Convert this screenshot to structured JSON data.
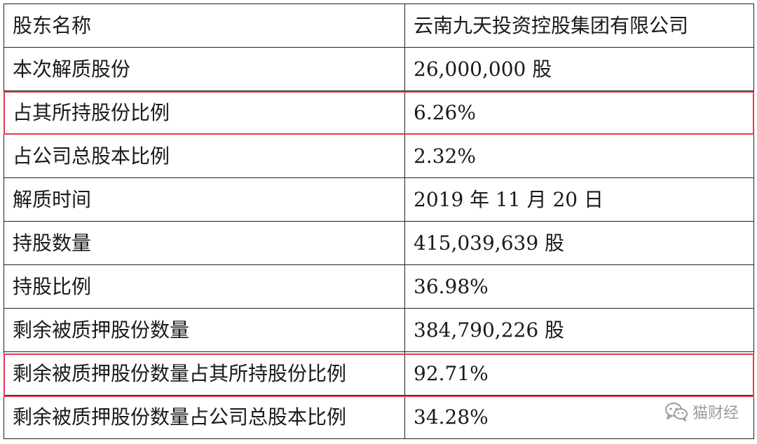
{
  "table": {
    "rows": [
      {
        "label": "股东名称",
        "value": "云南九天投资控股集团有限公司"
      },
      {
        "label": "本次解质股份",
        "value": "26,000,000 股"
      },
      {
        "label": "占其所持股份比例",
        "value": "6.26%"
      },
      {
        "label": "占公司总股本比例",
        "value": "2.32%"
      },
      {
        "label": "解质时间",
        "value": "2019 年 11 月 20 日"
      },
      {
        "label": "持股数量",
        "value": "415,039,639  股"
      },
      {
        "label": "持股比例",
        "value": "36.98%"
      },
      {
        "label": "剩余被质押股份数量",
        "value": "384,790,226  股"
      },
      {
        "label": "剩余被质押股份数量占其所持股份比例",
        "value": "92.71%"
      },
      {
        "label": "剩余被质押股份数量占公司总股本比例",
        "value": "34.28%"
      }
    ]
  },
  "highlights": {
    "color": "#e33b4e",
    "rows": [
      2,
      8
    ]
  },
  "watermark": {
    "text": "猫财经",
    "icon": "wechat-icon"
  }
}
